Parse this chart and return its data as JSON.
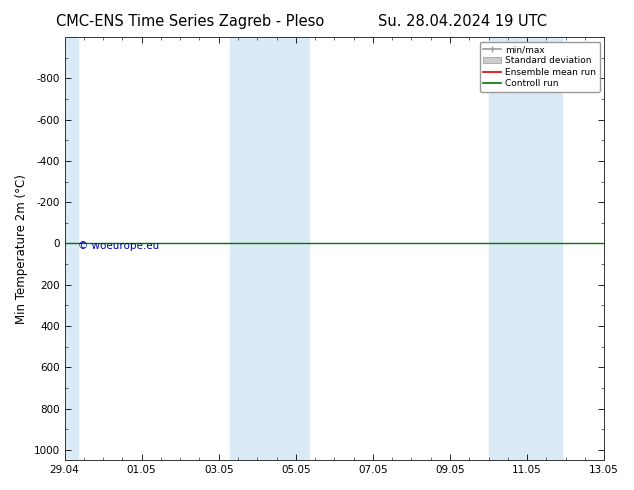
{
  "title_left": "CMC-ENS Time Series Zagreb - Pleso",
  "title_right": "Su. 28.04.2024 19 UTC",
  "ylabel": "Min Temperature 2m (°C)",
  "xlabel_ticks": [
    "29.04",
    "01.05",
    "03.05",
    "05.05",
    "07.05",
    "09.05",
    "11.05",
    "13.05"
  ],
  "yticks": [
    -800,
    -600,
    -400,
    -200,
    0,
    200,
    400,
    600,
    800,
    1000
  ],
  "ylim_bottom": 1050,
  "ylim_top": -1000,
  "xlim": [
    0,
    14.0
  ],
  "xtick_positions": [
    0,
    2,
    4,
    6,
    8,
    10,
    12,
    14
  ],
  "shaded_regions": [
    {
      "xmin": 0.0,
      "xmax": 0.35,
      "color": "#daeaf6"
    },
    {
      "xmin": 4.3,
      "xmax": 6.35,
      "color": "#daeaf6"
    },
    {
      "xmin": 11.0,
      "xmax": 12.9,
      "color": "#daeaf6"
    }
  ],
  "green_line_y": 0,
  "watermark": "© woeurope.eu",
  "watermark_color": "#0000bb",
  "background_color": "#ffffff",
  "plot_bg_color": "#ffffff",
  "legend_entries": [
    "min/max",
    "Standard deviation",
    "Ensemble mean run",
    "Controll run"
  ],
  "title_fontsize": 10.5,
  "tick_fontsize": 7.5,
  "ylabel_fontsize": 8.5
}
